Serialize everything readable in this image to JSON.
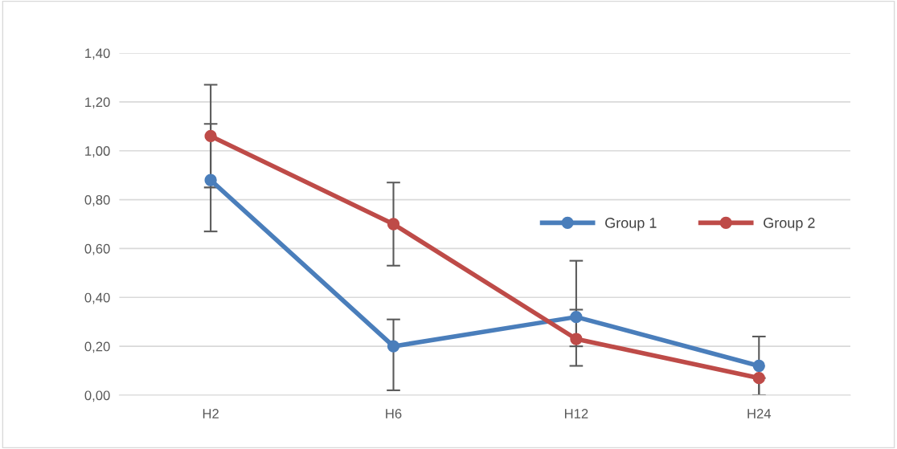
{
  "chart_data": {
    "type": "line",
    "categories": [
      "H2",
      "H6",
      "H12",
      "H24"
    ],
    "series": [
      {
        "name": "Group 1",
        "color": "#4a7ebb",
        "values": [
          0.88,
          0.2,
          0.32,
          0.12
        ],
        "errors": [
          [
            0.67,
            1.11
          ],
          [
            0.02,
            0.31
          ],
          [
            0.2,
            0.55
          ],
          [
            0.0,
            0.24
          ]
        ]
      },
      {
        "name": "Group 2",
        "color": "#be4b48",
        "values": [
          1.06,
          0.7,
          0.23,
          0.07
        ],
        "errors": [
          [
            0.85,
            1.27
          ],
          [
            0.53,
            0.87
          ],
          [
            0.12,
            0.35
          ],
          [
            0.0,
            0.07
          ]
        ]
      }
    ],
    "ylim": [
      0,
      1.4
    ],
    "yticks": [
      {
        "value": 0,
        "label": "0,00"
      },
      {
        "value": 0.2,
        "label": "0,20"
      },
      {
        "value": 0.4,
        "label": "0,40"
      },
      {
        "value": 0.6,
        "label": "0,60"
      },
      {
        "value": 0.8,
        "label": "0,80"
      },
      {
        "value": 1.0,
        "label": "1,00"
      },
      {
        "value": 1.2,
        "label": "1,20"
      },
      {
        "value": 1.4,
        "label": "1,40"
      }
    ],
    "grid": "y",
    "legend": "right",
    "marker": "circle",
    "line_style": "solid"
  }
}
